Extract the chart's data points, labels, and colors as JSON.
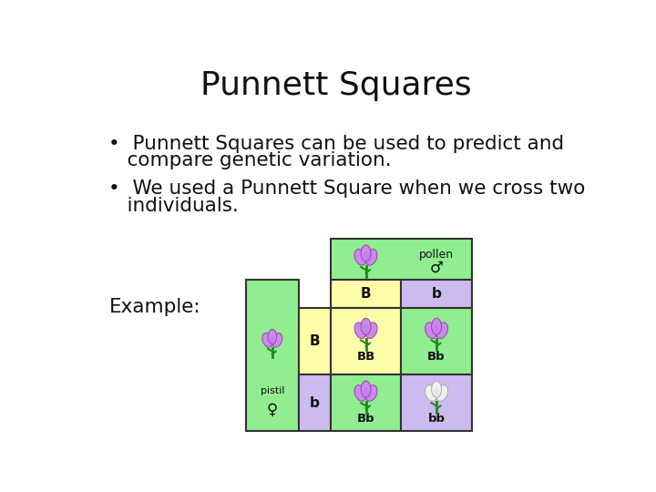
{
  "title": "Punnett Squares",
  "bullet1_line1": "•  Punnett Squares can be used to predict and",
  "bullet1_line2": "   compare genetic variation.",
  "bullet2_line1": "•  We used a Punnett Square when we cross two",
  "bullet2_line2": "   individuals.",
  "example_label": "Example:",
  "bg_color": "#ffffff",
  "title_fontsize": 26,
  "body_fontsize": 15.5,
  "example_fontsize": 15.5,
  "cell_colors": {
    "pollen_header": "#90ee90",
    "pistil_header": "#90ee90",
    "B_col_header": "#ffffaa",
    "b_col_header": "#ccbbee",
    "B_row_header": "#ffffaa",
    "b_row_header": "#ccbbee",
    "BB_cell": "#ffffaa",
    "Bb_cell_topright": "#90ee90",
    "Bb_cell_bottomleft": "#90ee90",
    "bb_cell": "#ccbbee"
  },
  "punnett_labels": {
    "col1": "B",
    "col2": "b",
    "row1": "B",
    "row2": "b",
    "cell_BB": "BB",
    "cell_Bb1": "Bb",
    "cell_Bb2": "Bb",
    "cell_bb": "bb",
    "pollen_text": "pollen",
    "pistil_text": "pistil"
  },
  "flower_purple": "#cc88ee",
  "flower_white": "#f0f0f0",
  "stem_color": "#228822",
  "grid_line_color": "#333333",
  "grid_lw": 1.5
}
